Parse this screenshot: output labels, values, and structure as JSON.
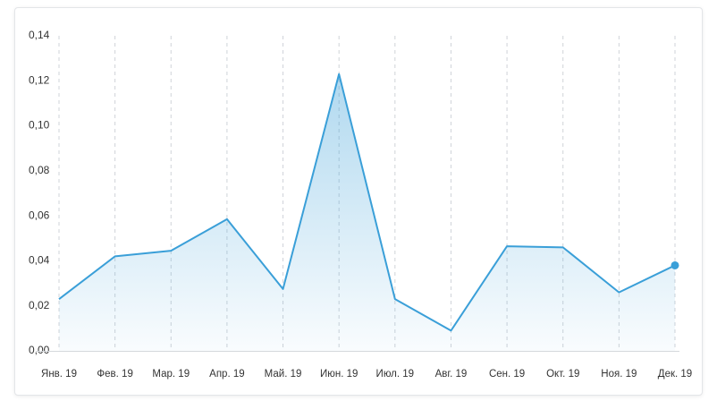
{
  "chart_data": {
    "type": "area",
    "categories": [
      "Янв. 19",
      "Фев. 19",
      "Мар. 19",
      "Апр. 19",
      "Май. 19",
      "Июн. 19",
      "Июл. 19",
      "Авг. 19",
      "Сен. 19",
      "Окт. 19",
      "Ноя. 19",
      "Дек. 19"
    ],
    "values": [
      0.023,
      0.042,
      0.0445,
      0.0585,
      0.0275,
      0.123,
      0.023,
      0.009,
      0.0465,
      0.046,
      0.026,
      0.038
    ],
    "color": "#3a9fd8",
    "ylim": [
      0,
      0.14
    ],
    "yticks": [
      {
        "value": 0,
        "label": "0,00"
      },
      {
        "value": 0.02,
        "label": "0,02"
      },
      {
        "value": 0.04,
        "label": "0,04"
      },
      {
        "value": 0.06,
        "label": "0,06"
      },
      {
        "value": 0.08,
        "label": "0,08"
      },
      {
        "value": 0.1,
        "label": "0,10"
      },
      {
        "value": 0.12,
        "label": "0,12"
      },
      {
        "value": 0.14,
        "label": "0,14"
      }
    ],
    "grid": "vertical-dashed"
  }
}
